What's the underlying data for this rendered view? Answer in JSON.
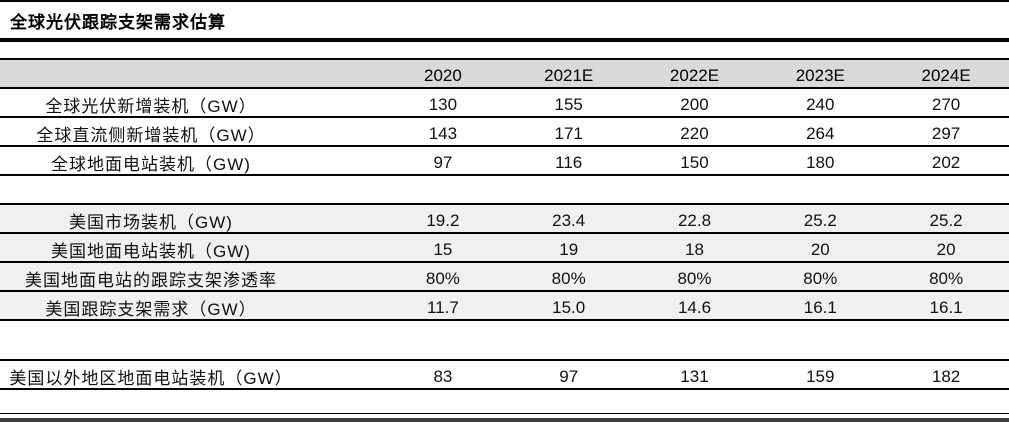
{
  "title": "全球光伏跟踪支架需求估算",
  "table": {
    "columns": [
      "2020",
      "2021E",
      "2022E",
      "2023E",
      "2024E"
    ],
    "sections": [
      {
        "style": "white",
        "rows": [
          {
            "label": "全球光伏新增装机（GW）",
            "values": [
              "130",
              "155",
              "200",
              "240",
              "270"
            ]
          },
          {
            "label": "全球直流侧新增装机（GW）",
            "values": [
              "143",
              "171",
              "220",
              "264",
              "297"
            ]
          },
          {
            "label": "全球地面电站装机（GW)",
            "values": [
              "97",
              "116",
              "150",
              "180",
              "202"
            ]
          }
        ]
      },
      {
        "style": "gray",
        "rows": [
          {
            "label": "美国市场装机（GW)",
            "values": [
              "19.2",
              "23.4",
              "22.8",
              "25.2",
              "25.2"
            ]
          },
          {
            "label": "美国地面电站装机（GW)",
            "values": [
              "15",
              "19",
              "18",
              "20",
              "20"
            ]
          },
          {
            "label": "美国地面电站的跟踪支架渗透率",
            "values": [
              "80%",
              "80%",
              "80%",
              "80%",
              "80%"
            ]
          },
          {
            "label": "美国跟踪支架需求（GW）",
            "values": [
              "11.7",
              "15.0",
              "14.6",
              "16.1",
              "16.1"
            ]
          }
        ]
      },
      {
        "style": "white",
        "rows": [
          {
            "label": "美国以外地区地面电站装机（GW）",
            "values": [
              "83",
              "97",
              "131",
              "159",
              "182"
            ]
          }
        ]
      }
    ]
  },
  "colors": {
    "header_bg": "#d9d9d9",
    "band_bg": "#f0f0f0",
    "border": "#000000",
    "closing_bar": "#3d3d3d"
  },
  "chart_data": {
    "type": "table",
    "title": "全球光伏跟踪支架需求估算",
    "columns": [
      "2020",
      "2021E",
      "2022E",
      "2023E",
      "2024E"
    ],
    "rows": [
      {
        "label": "全球光伏新增装机（GW）",
        "values": [
          130,
          155,
          200,
          240,
          270
        ]
      },
      {
        "label": "全球直流侧新增装机（GW）",
        "values": [
          143,
          171,
          220,
          264,
          297
        ]
      },
      {
        "label": "全球地面电站装机（GW)",
        "values": [
          97,
          116,
          150,
          180,
          202
        ]
      },
      {
        "label": "美国市场装机（GW)",
        "values": [
          19.2,
          23.4,
          22.8,
          25.2,
          25.2
        ]
      },
      {
        "label": "美国地面电站装机（GW)",
        "values": [
          15,
          19,
          18,
          20,
          20
        ]
      },
      {
        "label": "美国地面电站的跟踪支架渗透率",
        "values": [
          "80%",
          "80%",
          "80%",
          "80%",
          "80%"
        ]
      },
      {
        "label": "美国跟踪支架需求（GW）",
        "values": [
          11.7,
          15.0,
          14.6,
          16.1,
          16.1
        ]
      },
      {
        "label": "美国以外地区地面电站装机（GW）",
        "values": [
          83,
          97,
          131,
          159,
          182
        ]
      }
    ]
  }
}
